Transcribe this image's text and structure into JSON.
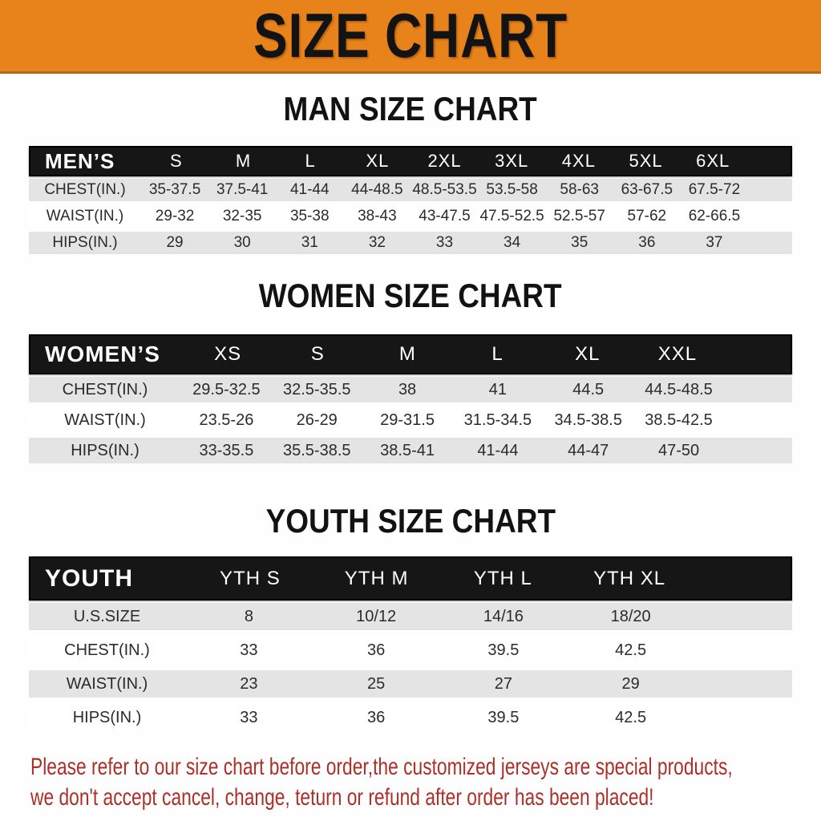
{
  "banner": {
    "title": "SIZE CHART",
    "bg_color": "#e8831b",
    "text_color": "#131313"
  },
  "sections": [
    {
      "heading": "MAN SIZE CHART",
      "group_label": "MEN’S",
      "columns": [
        "S",
        "M",
        "L",
        "XL",
        "2XL",
        "3XL",
        "4XL",
        "5XL",
        "6XL"
      ],
      "rows": [
        {
          "label": "CHEST(IN.)",
          "values": [
            "35-37.5",
            "37.5-41",
            "41-44",
            "44-48.5",
            "48.5-53.5",
            "53.5-58",
            "58-63",
            "63-67.5",
            "67.5-72"
          ]
        },
        {
          "label": "WAIST(IN.)",
          "values": [
            "29-32",
            "32-35",
            "35-38",
            "38-43",
            "43-47.5",
            "47.5-52.5",
            "52.5-57",
            "57-62",
            "62-66.5"
          ]
        },
        {
          "label": "HIPS(IN.)",
          "values": [
            "29",
            "30",
            "31",
            "32",
            "33",
            "34",
            "35",
            "36",
            "37"
          ]
        }
      ]
    },
    {
      "heading": "WOMEN SIZE CHART",
      "group_label": "WOMEN’S",
      "columns": [
        "XS",
        "S",
        "M",
        "L",
        "XL",
        "XXL"
      ],
      "rows": [
        {
          "label": "CHEST(IN.)",
          "values": [
            "29.5-32.5",
            "32.5-35.5",
            "38",
            "41",
            "44.5",
            "44.5-48.5"
          ]
        },
        {
          "label": "WAIST(IN.)",
          "values": [
            "23.5-26",
            "26-29",
            "29-31.5",
            "31.5-34.5",
            "34.5-38.5",
            "38.5-42.5"
          ]
        },
        {
          "label": "HIPS(IN.)",
          "values": [
            "33-35.5",
            "35.5-38.5",
            "38.5-41",
            "41-44",
            "44-47",
            "47-50"
          ]
        }
      ]
    },
    {
      "heading": "YOUTH SIZE CHART",
      "group_label": "YOUTH",
      "columns": [
        "YTH S",
        "YTH M",
        "YTH L",
        "YTH XL"
      ],
      "rows": [
        {
          "label": "U.S.SIZE",
          "values": [
            "8",
            "10/12",
            "14/16",
            "18/20"
          ]
        },
        {
          "label": "CHEST(IN.)",
          "values": [
            "33",
            "36",
            "39.5",
            "42.5"
          ]
        },
        {
          "label": "WAIST(IN.)",
          "values": [
            "23",
            "25",
            "27",
            "29"
          ]
        },
        {
          "label": "HIPS(IN.)",
          "values": [
            "33",
            "36",
            "39.5",
            "42.5"
          ]
        }
      ]
    }
  ],
  "footer": {
    "lines": [
      "Please refer to our size chart before order,the customized jerseys are special products,",
      "we don't accept cancel, change, teturn or refund after order has been placed!"
    ],
    "text_color": "#ab3028"
  }
}
